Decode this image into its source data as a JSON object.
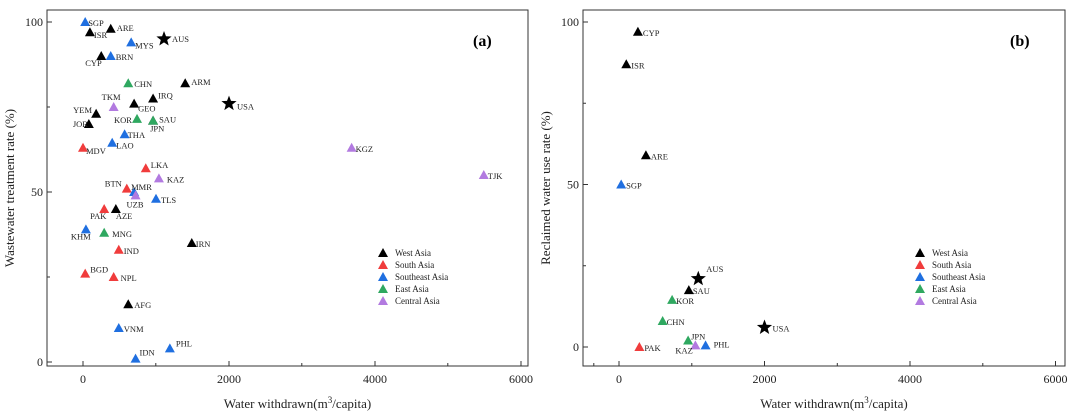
{
  "colors": {
    "West Asia": "#000000",
    "South Asia": "#f03c3c",
    "Southeast Asia": "#1f6fe0",
    "East Asia": "#2fa860",
    "Central Asia": "#b27ae0"
  },
  "chart_data": [
    {
      "type": "scatter",
      "panel_label": "(a)",
      "xlabel": "Water withdrawn(m3/capita)",
      "xlabel_parts": [
        "Water withdrawn(m",
        "3",
        "/capita)"
      ],
      "ylabel": "Wastewater treatment rate (%)",
      "xlim": [
        -500,
        6000
      ],
      "ylim": [
        0,
        104
      ],
      "xticks": [
        "0",
        "2000",
        "4000",
        "6000"
      ],
      "yticks": [
        "0",
        "50",
        "100"
      ],
      "legend": [
        "West Asia",
        "South Asia",
        "Southeast Asia",
        "East Asia",
        "Central Asia"
      ],
      "legend_position": "bottom-right",
      "points": [
        {
          "label": "SGP",
          "group": "Southeast Asia",
          "x": 30,
          "y": 100
        },
        {
          "label": "ISR",
          "group": "West Asia",
          "x": 95,
          "y": 97
        },
        {
          "label": "ARE",
          "group": "West Asia",
          "x": 380,
          "y": 98
        },
        {
          "label": "MYS",
          "group": "Southeast Asia",
          "x": 660,
          "y": 94
        },
        {
          "label": "AUS",
          "group": "Reference",
          "x": 1110,
          "y": 95
        },
        {
          "label": "CYP",
          "group": "West Asia",
          "x": 250,
          "y": 90
        },
        {
          "label": "BRN",
          "group": "Southeast Asia",
          "x": 380,
          "y": 90
        },
        {
          "label": "CHN",
          "group": "East Asia",
          "x": 620,
          "y": 82
        },
        {
          "label": "ARM",
          "group": "West Asia",
          "x": 1400,
          "y": 82
        },
        {
          "label": "TKM",
          "group": "Central Asia",
          "x": 420,
          "y": 75
        },
        {
          "label": "IRQ",
          "group": "West Asia",
          "x": 960,
          "y": 77.5
        },
        {
          "label": "GEO",
          "group": "West Asia",
          "x": 700,
          "y": 76
        },
        {
          "label": "USA",
          "group": "Reference",
          "x": 2000,
          "y": 76
        },
        {
          "label": "YEM",
          "group": "West Asia",
          "x": 180,
          "y": 73
        },
        {
          "label": "KOR",
          "group": "East Asia",
          "x": 740,
          "y": 71.5
        },
        {
          "label": "SAU",
          "group": "West Asia",
          "x": 960,
          "y": 71
        },
        {
          "label": "JPN",
          "group": "East Asia",
          "x": 960,
          "y": 71
        },
        {
          "label": "JOR",
          "group": "West Asia",
          "x": 80,
          "y": 70
        },
        {
          "label": "THA",
          "group": "Southeast Asia",
          "x": 570,
          "y": 67
        },
        {
          "label": "LAO",
          "group": "Southeast Asia",
          "x": 400,
          "y": 64.5
        },
        {
          "label": "MDV",
          "group": "South Asia",
          "x": 0,
          "y": 63
        },
        {
          "label": "KGZ",
          "group": "Central Asia",
          "x": 3680,
          "y": 63
        },
        {
          "label": "LKA",
          "group": "South Asia",
          "x": 860,
          "y": 57
        },
        {
          "label": "TJK",
          "group": "Central Asia",
          "x": 5490,
          "y": 55
        },
        {
          "label": "KAZ",
          "group": "Central Asia",
          "x": 1040,
          "y": 54
        },
        {
          "label": "BTN",
          "group": "South Asia",
          "x": 600,
          "y": 51
        },
        {
          "label": "MMR",
          "group": "Southeast Asia",
          "x": 700,
          "y": 50
        },
        {
          "label": "UZB",
          "group": "Central Asia",
          "x": 720,
          "y": 49
        },
        {
          "label": "TLS",
          "group": "Southeast Asia",
          "x": 1000,
          "y": 48
        },
        {
          "label": "PAK",
          "group": "South Asia",
          "x": 290,
          "y": 45
        },
        {
          "label": "AZE",
          "group": "West Asia",
          "x": 450,
          "y": 45
        },
        {
          "label": "KHM",
          "group": "Southeast Asia",
          "x": 40,
          "y": 39
        },
        {
          "label": "MNG",
          "group": "East Asia",
          "x": 290,
          "y": 38
        },
        {
          "label": "IRN",
          "group": "West Asia",
          "x": 1490,
          "y": 35
        },
        {
          "label": "IND",
          "group": "South Asia",
          "x": 490,
          "y": 33
        },
        {
          "label": "BGD",
          "group": "South Asia",
          "x": 30,
          "y": 26
        },
        {
          "label": "NPL",
          "group": "South Asia",
          "x": 420,
          "y": 25
        },
        {
          "label": "AFG",
          "group": "West Asia",
          "x": 620,
          "y": 17
        },
        {
          "label": "VNM",
          "group": "Southeast Asia",
          "x": 490,
          "y": 10
        },
        {
          "label": "PHL",
          "group": "Southeast Asia",
          "x": 1190,
          "y": 4
        },
        {
          "label": "IDN",
          "group": "Southeast Asia",
          "x": 720,
          "y": 1
        }
      ]
    },
    {
      "type": "scatter",
      "panel_label": "(b)",
      "xlabel": "Water withdrawn(m3/capita)",
      "xlabel_parts": [
        "Water withdrawn(m",
        "3",
        "/capita)"
      ],
      "ylabel": "Reclaimed water use rate (%)",
      "xlim": [
        -500,
        6000
      ],
      "ylim": [
        -6,
        104
      ],
      "xticks": [
        "0",
        "2000",
        "4000",
        "6000"
      ],
      "yticks": [
        "0",
        "50",
        "100"
      ],
      "legend": [
        "West Asia",
        "South Asia",
        "Southeast Asia",
        "East Asia",
        "Central Asia"
      ],
      "legend_position": "bottom-right",
      "points": [
        {
          "label": "CYP",
          "group": "West Asia",
          "x": 260,
          "y": 97
        },
        {
          "label": "ISR",
          "group": "West Asia",
          "x": 100,
          "y": 87
        },
        {
          "label": "ARE",
          "group": "West Asia",
          "x": 370,
          "y": 59
        },
        {
          "label": "SGP",
          "group": "Southeast Asia",
          "x": 30,
          "y": 50
        },
        {
          "label": "AUS",
          "group": "Reference",
          "x": 1090,
          "y": 21
        },
        {
          "label": "SAU",
          "group": "West Asia",
          "x": 960,
          "y": 17.5
        },
        {
          "label": "KOR",
          "group": "East Asia",
          "x": 730,
          "y": 14.5
        },
        {
          "label": "CHN",
          "group": "East Asia",
          "x": 600,
          "y": 8
        },
        {
          "label": "USA",
          "group": "Reference",
          "x": 2000,
          "y": 6
        },
        {
          "label": "JPN",
          "group": "East Asia",
          "x": 950,
          "y": 2
        },
        {
          "label": "KAZ",
          "group": "Central Asia",
          "x": 1050,
          "y": 0.5
        },
        {
          "label": "PHL",
          "group": "Southeast Asia",
          "x": 1190,
          "y": 0.5
        },
        {
          "label": "PAK",
          "group": "South Asia",
          "x": 280,
          "y": 0
        }
      ]
    }
  ]
}
